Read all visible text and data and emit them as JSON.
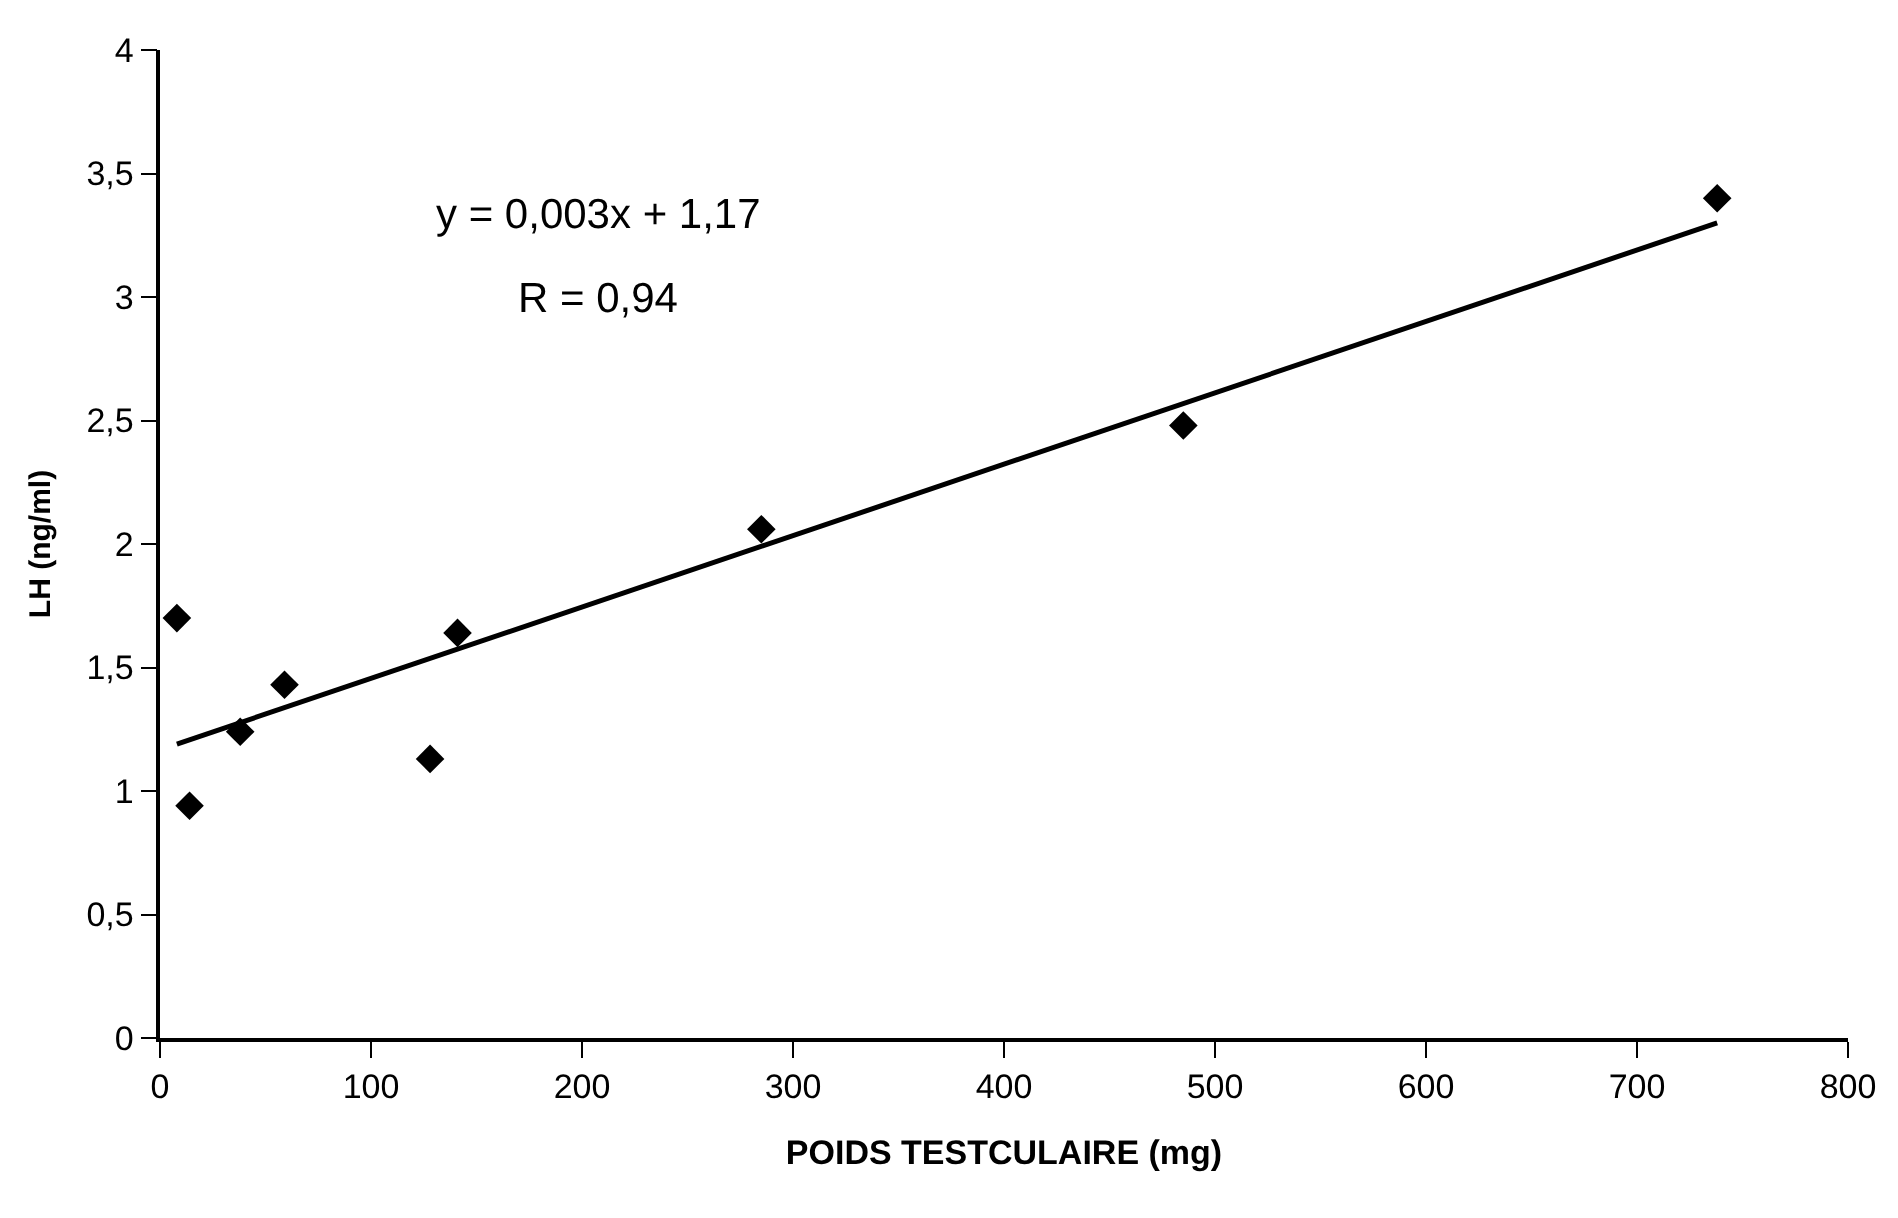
{
  "chart_data": {
    "type": "scatter",
    "xlabel": "POIDS TESTCULAIRE (mg)",
    "ylabel": "LH (ng/ml)",
    "x": [
      8,
      14,
      38,
      59,
      128,
      141,
      285,
      485,
      738
    ],
    "series": [
      {
        "color": "#000000",
        "values": [
          1.7,
          0.94,
          1.24,
          1.43,
          1.13,
          1.64,
          2.06,
          2.48,
          3.4
        ]
      },
      {
        "type": "line",
        "color": "#000000",
        "x": [
          8,
          738
        ],
        "values": [
          1.19,
          3.3
        ],
        "marker": "none"
      }
    ],
    "xlim": [
      0,
      800
    ],
    "xticks": [
      0,
      100,
      200,
      300,
      400,
      500,
      600,
      700,
      800
    ],
    "ylim": [
      0,
      4
    ],
    "yticks": [
      0,
      {
        "value": 0.5,
        "label": "0,5"
      },
      1,
      {
        "value": 1.5,
        "label": "1,5"
      },
      2,
      {
        "value": 2.5,
        "label": "2,5"
      },
      3,
      {
        "value": 3.5,
        "label": "3,5"
      },
      4
    ],
    "annotations": [
      "y = 0,003x + 1,17",
      "R = 0,94"
    ],
    "marker": "diamond",
    "grid": false,
    "legend": false
  }
}
